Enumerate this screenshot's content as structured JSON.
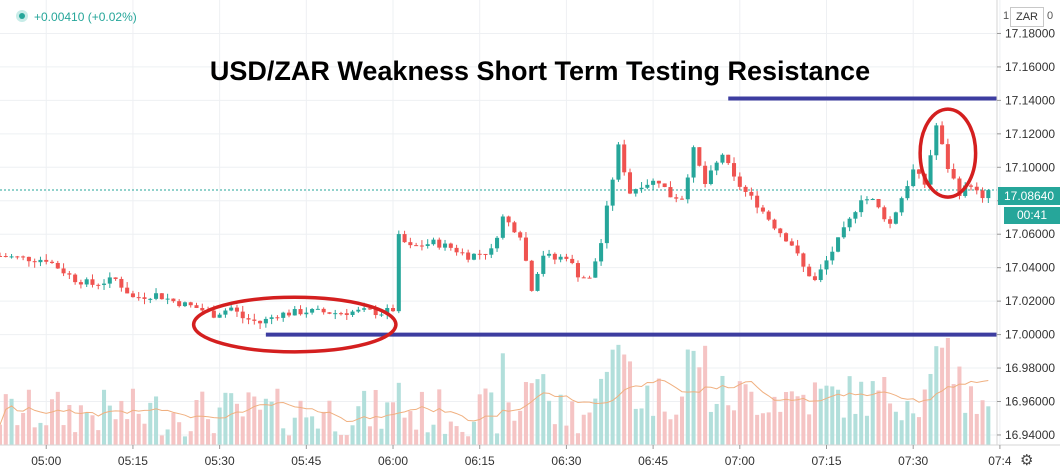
{
  "header": {
    "change_text": "+0.00410 (+0.02%)",
    "currency_label": "ZAR",
    "scale_one": "1",
    "scale_zero": "0"
  },
  "current": {
    "price_label": "17.08640",
    "countdown": "00:41",
    "price": 17.0864
  },
  "colors": {
    "up": "#26a69a",
    "down": "#ef5350",
    "volume_up": "#b2dfdb",
    "volume_down": "#f5c4c4",
    "ma_line": "#f0b080",
    "annotation_line": "#3d3da0",
    "annotation_circle": "#d41f1f",
    "grid": "#eef0f3"
  },
  "icons": {
    "settings": "gear-icon"
  },
  "chart_data": {
    "type": "candlestick",
    "title": "USD/ZAR Weakness Short Term Testing Resistance",
    "y_ticks": [
      "17.18000",
      "17.16000",
      "17.14000",
      "17.12000",
      "17.10000",
      "17.08000",
      "17.06000",
      "17.04000",
      "17.02000",
      "17.00000",
      "16.98000",
      "16.96000",
      "16.94000"
    ],
    "y_tick_values": [
      17.18,
      17.16,
      17.14,
      17.12,
      17.1,
      17.08,
      17.06,
      17.04,
      17.02,
      17.0,
      16.98,
      16.96,
      16.94
    ],
    "x_ticks": [
      "05:00",
      "05:15",
      "05:30",
      "05:45",
      "06:00",
      "06:15",
      "06:30",
      "06:45",
      "07:00",
      "07:15",
      "07:30",
      "07:4"
    ],
    "x_tick_minutes": [
      300,
      315,
      330,
      345,
      360,
      375,
      390,
      405,
      420,
      435,
      450,
      465
    ],
    "ylim": [
      16.934,
      17.2
    ],
    "x_range_minutes": [
      292,
      464.5
    ],
    "bar_interval_minutes": 1,
    "grid": true,
    "anchors": [
      {
        "t": 292,
        "p": 17.047
      },
      {
        "t": 298,
        "p": 17.045
      },
      {
        "t": 300,
        "p": 17.045
      },
      {
        "t": 305,
        "p": 17.033
      },
      {
        "t": 308,
        "p": 17.03
      },
      {
        "t": 312,
        "p": 17.033
      },
      {
        "t": 315,
        "p": 17.022
      },
      {
        "t": 319,
        "p": 17.024
      },
      {
        "t": 322,
        "p": 17.02
      },
      {
        "t": 326,
        "p": 17.016
      },
      {
        "t": 329,
        "p": 17.012
      },
      {
        "t": 332,
        "p": 17.016
      },
      {
        "t": 334,
        "p": 17.01
      },
      {
        "t": 337,
        "p": 17.007
      },
      {
        "t": 340,
        "p": 17.012
      },
      {
        "t": 345,
        "p": 17.014
      },
      {
        "t": 350,
        "p": 17.013
      },
      {
        "t": 355,
        "p": 17.014
      },
      {
        "t": 358,
        "p": 17.013
      },
      {
        "t": 360,
        "p": 17.015
      },
      {
        "t": 361,
        "p": 17.058
      },
      {
        "t": 363,
        "p": 17.052
      },
      {
        "t": 367,
        "p": 17.055
      },
      {
        "t": 370,
        "p": 17.052
      },
      {
        "t": 373,
        "p": 17.047
      },
      {
        "t": 377,
        "p": 17.05
      },
      {
        "t": 379,
        "p": 17.07
      },
      {
        "t": 382,
        "p": 17.06
      },
      {
        "t": 384,
        "p": 17.028
      },
      {
        "t": 386,
        "p": 17.048
      },
      {
        "t": 388,
        "p": 17.045
      },
      {
        "t": 390,
        "p": 17.047
      },
      {
        "t": 392,
        "p": 17.036
      },
      {
        "t": 394,
        "p": 17.033
      },
      {
        "t": 396,
        "p": 17.055
      },
      {
        "t": 397,
        "p": 17.075
      },
      {
        "t": 399,
        "p": 17.112
      },
      {
        "t": 401,
        "p": 17.085
      },
      {
        "t": 403,
        "p": 17.09
      },
      {
        "t": 406,
        "p": 17.092
      },
      {
        "t": 408,
        "p": 17.083
      },
      {
        "t": 410,
        "p": 17.082
      },
      {
        "t": 412,
        "p": 17.11
      },
      {
        "t": 414,
        "p": 17.09
      },
      {
        "t": 417,
        "p": 17.108
      },
      {
        "t": 419,
        "p": 17.093
      },
      {
        "t": 421,
        "p": 17.085
      },
      {
        "t": 423,
        "p": 17.078
      },
      {
        "t": 426,
        "p": 17.065
      },
      {
        "t": 429,
        "p": 17.054
      },
      {
        "t": 431,
        "p": 17.04
      },
      {
        "t": 433,
        "p": 17.032
      },
      {
        "t": 436,
        "p": 17.05
      },
      {
        "t": 439,
        "p": 17.068
      },
      {
        "t": 441,
        "p": 17.082
      },
      {
        "t": 443,
        "p": 17.08
      },
      {
        "t": 446,
        "p": 17.066
      },
      {
        "t": 448,
        "p": 17.082
      },
      {
        "t": 450,
        "p": 17.098
      },
      {
        "t": 452,
        "p": 17.09
      },
      {
        "t": 454,
        "p": 17.125
      },
      {
        "t": 456,
        "p": 17.1
      },
      {
        "t": 458,
        "p": 17.085
      },
      {
        "t": 460,
        "p": 17.09
      },
      {
        "t": 462,
        "p": 17.08
      },
      {
        "t": 463,
        "p": 17.0864
      }
    ],
    "volume_ylim": [
      0,
      100
    ],
    "annotations": {
      "resistance_line": {
        "price": 17.1411,
        "t_start": 418,
        "t_end": 464.5
      },
      "support_line": {
        "price": 17.0,
        "t_start": 338,
        "t_end": 464.5
      },
      "circles": [
        {
          "t_center": 343,
          "p_center": 17.006,
          "t_radius": 17.5,
          "p_radius": 0.0163
        },
        {
          "t_center": 456,
          "p_center": 17.1085,
          "t_radius": 4.8,
          "p_radius": 0.0263
        }
      ]
    }
  }
}
